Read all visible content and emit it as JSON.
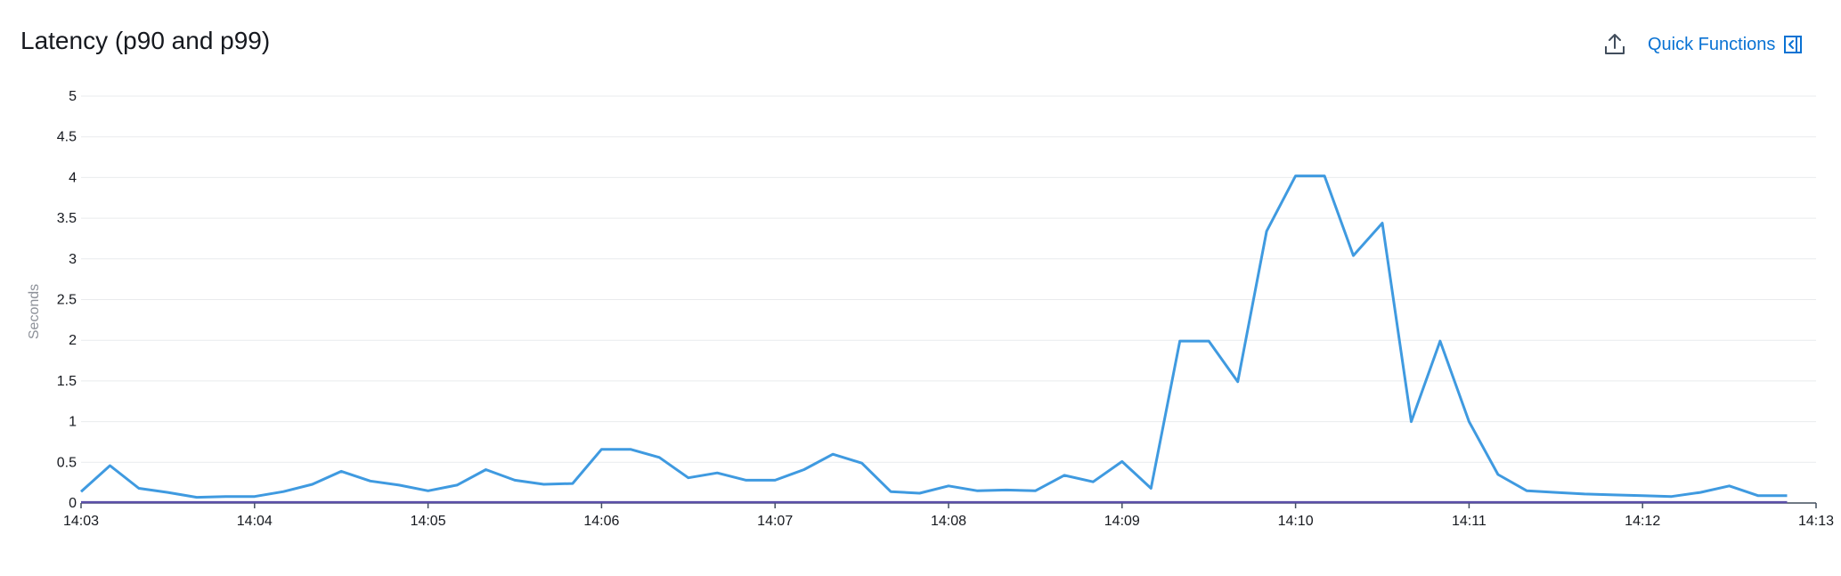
{
  "header": {
    "title": "Latency (p90 and p99)",
    "export_icon": "upload-icon",
    "quick_functions_label": "Quick Functions",
    "quick_functions_icon": "collapse-panel-icon",
    "link_color": "#0972d3"
  },
  "chart_data": {
    "type": "line",
    "title": "Latency (p90 and p99)",
    "xlabel": "",
    "ylabel": "Seconds",
    "ylim": [
      0,
      5
    ],
    "yticks": [
      "0",
      "0.5",
      "1",
      "1.5",
      "2",
      "2.5",
      "3",
      "3.5",
      "4",
      "4.5",
      "5"
    ],
    "xticks": [
      "14:03",
      "14:04",
      "14:05",
      "14:06",
      "14:07",
      "14:08",
      "14:09",
      "14:10",
      "14:11",
      "14:12",
      "14:13"
    ],
    "grid": true,
    "x": [
      "14:03:00",
      "14:03:10",
      "14:03:20",
      "14:03:30",
      "14:03:40",
      "14:03:50",
      "14:04:00",
      "14:04:10",
      "14:04:20",
      "14:04:30",
      "14:04:40",
      "14:04:50",
      "14:05:00",
      "14:05:10",
      "14:05:20",
      "14:05:30",
      "14:05:40",
      "14:05:50",
      "14:06:00",
      "14:06:10",
      "14:06:20",
      "14:06:30",
      "14:06:40",
      "14:06:50",
      "14:07:00",
      "14:07:10",
      "14:07:20",
      "14:07:30",
      "14:07:40",
      "14:07:50",
      "14:08:00",
      "14:08:10",
      "14:08:20",
      "14:08:30",
      "14:08:40",
      "14:08:50",
      "14:09:00",
      "14:09:10",
      "14:09:20",
      "14:09:30",
      "14:09:40",
      "14:09:50",
      "14:10:00",
      "14:10:10",
      "14:10:20",
      "14:10:30",
      "14:10:40",
      "14:10:50",
      "14:11:00",
      "14:11:10",
      "14:11:20",
      "14:11:30",
      "14:11:40",
      "14:11:50",
      "14:12:00",
      "14:12:10",
      "14:12:20",
      "14:12:30",
      "14:12:40",
      "14:12:50"
    ],
    "series": [
      {
        "color": "#3f9ae0",
        "values": [
          0.14,
          0.46,
          0.18,
          0.13,
          0.07,
          0.08,
          0.08,
          0.14,
          0.23,
          0.39,
          0.27,
          0.22,
          0.15,
          0.22,
          0.41,
          0.28,
          0.23,
          0.24,
          0.66,
          0.66,
          0.56,
          0.31,
          0.37,
          0.28,
          0.28,
          0.41,
          0.6,
          0.49,
          0.14,
          0.12,
          0.21,
          0.15,
          0.16,
          0.15,
          0.34,
          0.26,
          0.51,
          0.18,
          1.99,
          1.99,
          1.49,
          3.34,
          4.02,
          4.02,
          3.04,
          3.44,
          1.0,
          1.99,
          1.0,
          0.35,
          0.15,
          0.13,
          0.11,
          0.1,
          0.09,
          0.08,
          0.13,
          0.21,
          0.09,
          0.09
        ]
      },
      {
        "color": "#5b4fa8",
        "values": [
          0.01,
          0.01,
          0.01,
          0.01,
          0.01,
          0.01,
          0.01,
          0.01,
          0.01,
          0.01,
          0.01,
          0.01,
          0.01,
          0.01,
          0.01,
          0.01,
          0.01,
          0.01,
          0.01,
          0.01,
          0.01,
          0.01,
          0.01,
          0.01,
          0.01,
          0.01,
          0.01,
          0.01,
          0.01,
          0.01,
          0.01,
          0.01,
          0.01,
          0.01,
          0.01,
          0.01,
          0.01,
          0.01,
          0.01,
          0.01,
          0.01,
          0.01,
          0.01,
          0.01,
          0.01,
          0.01,
          0.01,
          0.01,
          0.01,
          0.01,
          0.01,
          0.01,
          0.01,
          0.01,
          0.01,
          0.01,
          0.01,
          0.01,
          0.01,
          0.01
        ]
      }
    ]
  }
}
